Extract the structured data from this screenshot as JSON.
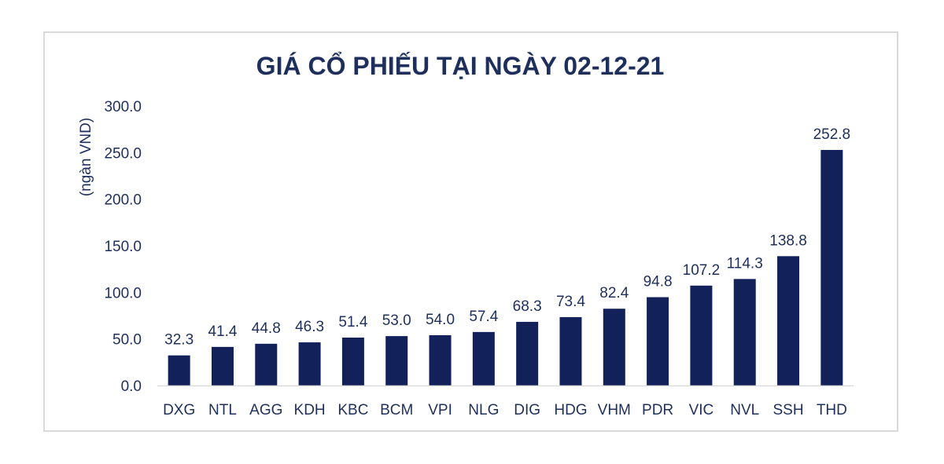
{
  "chart_data": {
    "type": "bar",
    "title": "GIÁ CỔ PHIẾU TẠI NGÀY 02-12-21",
    "ylabel": "(ngàn VND)",
    "xlabel": "",
    "ylim": [
      0,
      300
    ],
    "yticks": [
      "0.0",
      "50.0",
      "100.0",
      "150.0",
      "200.0",
      "250.0",
      "300.0"
    ],
    "ytick_values": [
      0,
      50,
      100,
      150,
      200,
      250,
      300
    ],
    "categories": [
      "DXG",
      "NTL",
      "AGG",
      "KDH",
      "KBC",
      "BCM",
      "VPI",
      "NLG",
      "DIG",
      "HDG",
      "VHM",
      "PDR",
      "VIC",
      "NVL",
      "SSH",
      "THD"
    ],
    "values": [
      32.3,
      41.4,
      44.8,
      46.3,
      51.4,
      53.0,
      54.0,
      57.4,
      68.3,
      73.4,
      82.4,
      94.8,
      107.2,
      114.3,
      138.8,
      252.8
    ],
    "data_labels": [
      "32.3",
      "41.4",
      "44.8",
      "46.3",
      "51.4",
      "53.0",
      "54.0",
      "57.4",
      "68.3",
      "73.4",
      "82.4",
      "94.8",
      "107.2",
      "114.3",
      "138.8",
      "252.8"
    ],
    "bar_color": "#13215a",
    "axis_color": "#d9d9d9",
    "grid": false,
    "legend": "none"
  }
}
